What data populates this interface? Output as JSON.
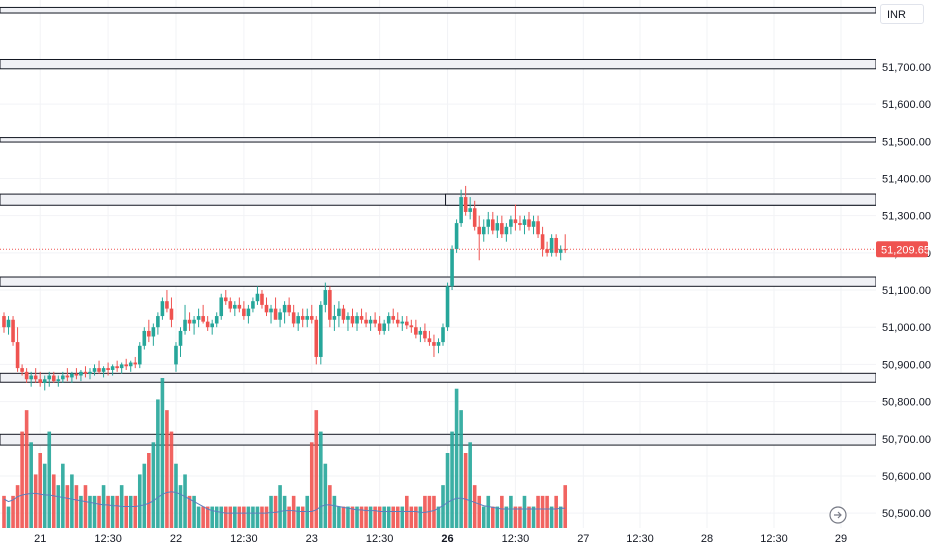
{
  "currency": "INR",
  "last_price_label": "51,209.65",
  "colors": {
    "up": "#26a69a",
    "down": "#ef5350",
    "zone_fill": "#f0f1f5",
    "zone_stroke": "#131722",
    "price_line": "#ef5350",
    "volume_ma": "#5b7fbf",
    "grid": "#f2f3f6"
  },
  "icons": {
    "nav": "scroll-to-realtime-icon"
  },
  "chart_data": {
    "type": "candlestick",
    "y_axis": {
      "range": [
        50460,
        51880
      ],
      "ticks": [
        51700,
        51600,
        51500,
        51400,
        51300,
        51200,
        51100,
        51000,
        50900,
        50800,
        50700,
        50600,
        50500
      ],
      "tick_labels": [
        "51,700.00",
        "51,600.00",
        "51,500.00",
        "51,400.00",
        "51,300.00",
        "51,200.00",
        "51,100.00",
        "51,000.00",
        "50,900.00",
        "50,800.00",
        "50,700.00",
        "50,600.00",
        "50,500.00"
      ]
    },
    "x_axis": {
      "range": [
        0,
        129
      ],
      "ticks": [
        {
          "label": "21",
          "t": 8,
          "bold": false
        },
        {
          "label": "12:30",
          "t": 23,
          "bold": false
        },
        {
          "label": "22",
          "t": 38,
          "bold": false
        },
        {
          "label": "12:30",
          "t": 53,
          "bold": false
        },
        {
          "label": "23",
          "t": 68,
          "bold": false
        },
        {
          "label": "12:30",
          "t": 83,
          "bold": false
        },
        {
          "label": "26",
          "t": 98,
          "bold": true
        },
        {
          "label": "12:30",
          "t": 113,
          "bold": false
        },
        {
          "label": "27",
          "t": 128,
          "bold": false
        }
      ],
      "future_ticks": [
        "12:30",
        "28",
        "12:30",
        "29"
      ]
    },
    "last_price": 51209.65,
    "zones": [
      {
        "from": 51860,
        "to": 51845
      },
      {
        "from": 51720,
        "to": 51695
      },
      {
        "from": 51510,
        "to": 51498
      },
      {
        "from": 51358,
        "to": 51328
      },
      {
        "from": 51135,
        "to": 51110
      },
      {
        "from": 50876,
        "to": 50852
      },
      {
        "from": 50712,
        "to": 50683
      }
    ],
    "candles": [
      [
        51030,
        51040,
        50985,
        51000,
        3
      ],
      [
        51000,
        51030,
        50980,
        51020,
        2
      ],
      [
        51020,
        51030,
        50950,
        50960,
        3
      ],
      [
        50960,
        51000,
        50880,
        50890,
        4
      ],
      [
        50890,
        50900,
        50870,
        50880,
        9
      ],
      [
        50880,
        50890,
        50850,
        50860,
        11
      ],
      [
        50860,
        50880,
        50840,
        50870,
        8
      ],
      [
        50870,
        50890,
        50850,
        50860,
        5
      ],
      [
        50860,
        50880,
        50840,
        50850,
        7
      ],
      [
        50850,
        50870,
        50830,
        50860,
        6
      ],
      [
        50860,
        50880,
        50840,
        50870,
        9
      ],
      [
        50870,
        50880,
        50850,
        50855,
        5
      ],
      [
        50855,
        50870,
        50840,
        50860,
        4
      ],
      [
        50860,
        50880,
        50850,
        50870,
        6
      ],
      [
        50870,
        50890,
        50855,
        50865,
        4
      ],
      [
        50865,
        50880,
        50850,
        50875,
        5
      ],
      [
        50875,
        50890,
        50860,
        50870,
        4
      ],
      [
        50870,
        50885,
        50855,
        50880,
        3
      ],
      [
        50880,
        50895,
        50865,
        50875,
        4
      ],
      [
        50875,
        50890,
        50860,
        50880,
        3
      ],
      [
        50880,
        50900,
        50870,
        50890,
        3
      ],
      [
        50890,
        50910,
        50875,
        50880,
        3
      ],
      [
        50880,
        50895,
        50865,
        50890,
        4
      ],
      [
        50890,
        50905,
        50870,
        50885,
        3
      ],
      [
        50885,
        50900,
        50870,
        50895,
        3
      ],
      [
        50895,
        50910,
        50880,
        50890,
        3
      ],
      [
        50890,
        50905,
        50875,
        50900,
        4
      ],
      [
        50900,
        50915,
        50885,
        50895,
        3
      ],
      [
        50895,
        50910,
        50880,
        50905,
        3
      ],
      [
        50905,
        50920,
        50890,
        50900,
        3
      ],
      [
        50900,
        50960,
        50890,
        50950,
        5
      ],
      [
        50950,
        51000,
        50940,
        50990,
        6
      ],
      [
        50990,
        51020,
        50960,
        50975,
        7
      ],
      [
        50975,
        51010,
        50950,
        51000,
        8
      ],
      [
        51000,
        51040,
        50980,
        51030,
        12
      ],
      [
        51030,
        51080,
        51020,
        51070,
        14
      ],
      [
        51070,
        51100,
        51040,
        51050,
        11
      ],
      [
        51050,
        51080,
        51000,
        51020,
        9
      ],
      [
        50900,
        50960,
        50880,
        50950,
        6
      ],
      [
        50950,
        51000,
        50920,
        50990,
        4
      ],
      [
        50990,
        51060,
        50980,
        51020,
        5
      ],
      [
        51020,
        51040,
        50990,
        51010,
        3
      ],
      [
        51010,
        51030,
        50980,
        51020,
        3
      ],
      [
        51020,
        51050,
        51000,
        51030,
        2
      ],
      [
        51030,
        51060,
        51010,
        51015,
        2
      ],
      [
        51015,
        51030,
        50990,
        51000,
        2
      ],
      [
        51000,
        51020,
        50980,
        51010,
        2
      ],
      [
        51010,
        51040,
        51000,
        51030,
        2
      ],
      [
        51030,
        51090,
        51020,
        51080,
        2
      ],
      [
        51080,
        51100,
        51060,
        51070,
        2
      ],
      [
        51070,
        51080,
        51040,
        51050,
        2
      ],
      [
        51050,
        51070,
        51030,
        51060,
        2
      ],
      [
        51060,
        51080,
        51040,
        51050,
        2
      ],
      [
        51050,
        51070,
        51020,
        51030,
        2
      ],
      [
        51030,
        51060,
        51010,
        51050,
        2
      ],
      [
        51050,
        51080,
        51040,
        51070,
        2
      ],
      [
        51070,
        51110,
        51060,
        51090,
        2
      ],
      [
        51090,
        51100,
        51050,
        51060,
        2
      ],
      [
        51060,
        51080,
        51030,
        51040,
        2
      ],
      [
        51040,
        51060,
        51010,
        51050,
        3
      ],
      [
        51050,
        51080,
        51030,
        51020,
        3
      ],
      [
        51020,
        51050,
        51000,
        51040,
        4
      ],
      [
        51040,
        51070,
        51010,
        51060,
        3
      ],
      [
        51060,
        51080,
        51030,
        51040,
        2
      ],
      [
        51040,
        51060,
        51000,
        51010,
        3
      ],
      [
        51010,
        51040,
        50990,
        51030,
        2
      ],
      [
        51030,
        51050,
        51000,
        51020,
        2
      ],
      [
        51020,
        51050,
        51000,
        51030,
        3
      ],
      [
        51030,
        51060,
        51010,
        51020,
        8
      ],
      [
        51020,
        51030,
        50900,
        50920,
        11
      ],
      [
        50920,
        51070,
        50900,
        51060,
        9
      ],
      [
        51060,
        51120,
        51040,
        51100,
        6
      ],
      [
        51100,
        51110,
        51000,
        51020,
        4
      ],
      [
        51020,
        51060,
        50990,
        51030,
        3
      ],
      [
        51030,
        51070,
        51000,
        51050,
        2
      ],
      [
        51050,
        51060,
        51010,
        51020,
        2
      ],
      [
        51020,
        51040,
        50990,
        51030,
        2
      ],
      [
        51030,
        51050,
        51000,
        51010,
        2
      ],
      [
        51010,
        51040,
        50990,
        51030,
        2
      ],
      [
        51030,
        51050,
        51010,
        51020,
        2
      ],
      [
        51020,
        51040,
        51000,
        51010,
        2
      ],
      [
        51010,
        51030,
        50990,
        51020,
        2
      ],
      [
        51020,
        51040,
        51000,
        51010,
        2
      ],
      [
        51010,
        51030,
        50980,
        50990,
        2
      ],
      [
        50990,
        51020,
        50980,
        51010,
        2
      ],
      [
        51010,
        51040,
        50990,
        51030,
        2
      ],
      [
        51030,
        51050,
        51010,
        51020,
        2
      ],
      [
        51020,
        51040,
        51000,
        51010,
        2
      ],
      [
        51010,
        51030,
        50990,
        51015,
        2
      ],
      [
        51015,
        51030,
        50995,
        51005,
        3
      ],
      [
        51005,
        51020,
        50985,
        51000,
        2
      ],
      [
        51000,
        51020,
        50970,
        50980,
        2
      ],
      [
        50980,
        51000,
        50960,
        50990,
        2
      ],
      [
        50990,
        51010,
        50960,
        50970,
        3
      ],
      [
        50970,
        50990,
        50950,
        50960,
        3
      ],
      [
        50960,
        50980,
        50920,
        50950,
        3
      ],
      [
        50950,
        50970,
        50930,
        50960,
        2
      ],
      [
        50960,
        51010,
        50950,
        51000,
        4
      ],
      [
        51000,
        51120,
        50990,
        51110,
        7
      ],
      [
        51110,
        51220,
        51100,
        51210,
        9
      ],
      [
        51210,
        51290,
        51200,
        51280,
        13
      ],
      [
        51280,
        51370,
        51270,
        51350,
        11
      ],
      [
        51350,
        51380,
        51300,
        51310,
        7
      ],
      [
        51310,
        51350,
        51290,
        51320,
        8
      ],
      [
        51320,
        51340,
        51260,
        51270,
        4
      ],
      [
        51270,
        51300,
        51180,
        51250,
        3
      ],
      [
        51250,
        51290,
        51230,
        51270,
        2
      ],
      [
        51270,
        51310,
        51250,
        51290,
        3
      ],
      [
        51290,
        51310,
        51250,
        51260,
        2
      ],
      [
        51260,
        51300,
        51240,
        51280,
        2
      ],
      [
        51280,
        51300,
        51240,
        51250,
        3
      ],
      [
        51250,
        51280,
        51230,
        51270,
        2
      ],
      [
        51270,
        51300,
        51250,
        51290,
        3
      ],
      [
        51290,
        51330,
        51260,
        51280,
        2
      ],
      [
        51280,
        51300,
        51260,
        51275,
        2
      ],
      [
        51275,
        51300,
        51250,
        51290,
        3
      ],
      [
        51290,
        51310,
        51260,
        51270,
        2
      ],
      [
        51270,
        51300,
        51250,
        51285,
        2
      ],
      [
        51285,
        51300,
        51240,
        51250,
        3
      ],
      [
        51250,
        51270,
        51190,
        51210,
        3
      ],
      [
        51210,
        51230,
        51190,
        51200,
        3
      ],
      [
        51200,
        51250,
        51190,
        51240,
        2
      ],
      [
        51240,
        51250,
        51190,
        51200,
        3
      ],
      [
        51200,
        51220,
        51180,
        51210,
        2
      ],
      [
        51210,
        51250,
        51200,
        51209,
        4
      ]
    ],
    "volume_ma": [
      0.35,
      0.32,
      0.34,
      0.38,
      0.4,
      0.41,
      0.42,
      0.42,
      0.41,
      0.4,
      0.4,
      0.39,
      0.38,
      0.37,
      0.36,
      0.35,
      0.34,
      0.33,
      0.32,
      0.31,
      0.3,
      0.29,
      0.28,
      0.28,
      0.27,
      0.27,
      0.26,
      0.26,
      0.26,
      0.26,
      0.27,
      0.28,
      0.3,
      0.33,
      0.37,
      0.41,
      0.43,
      0.44,
      0.43,
      0.41,
      0.38,
      0.35,
      0.32,
      0.29,
      0.26,
      0.23,
      0.21,
      0.2,
      0.19,
      0.18,
      0.18,
      0.18,
      0.18,
      0.18,
      0.18,
      0.18,
      0.18,
      0.18,
      0.18,
      0.19,
      0.19,
      0.2,
      0.21,
      0.21,
      0.21,
      0.2,
      0.2,
      0.2,
      0.2,
      0.22,
      0.26,
      0.28,
      0.28,
      0.27,
      0.26,
      0.25,
      0.24,
      0.23,
      0.22,
      0.22,
      0.21,
      0.21,
      0.21,
      0.2,
      0.2,
      0.2,
      0.2,
      0.2,
      0.2,
      0.2,
      0.2,
      0.2,
      0.19,
      0.19,
      0.2,
      0.21,
      0.24,
      0.27,
      0.31,
      0.34,
      0.36,
      0.36,
      0.35,
      0.33,
      0.31,
      0.29,
      0.27,
      0.26,
      0.25,
      0.24,
      0.23,
      0.23,
      0.23,
      0.23,
      0.23,
      0.23,
      0.23,
      0.23,
      0.23,
      0.23,
      0.23,
      0.23,
      0.23,
      0.24,
      0.24
    ]
  }
}
